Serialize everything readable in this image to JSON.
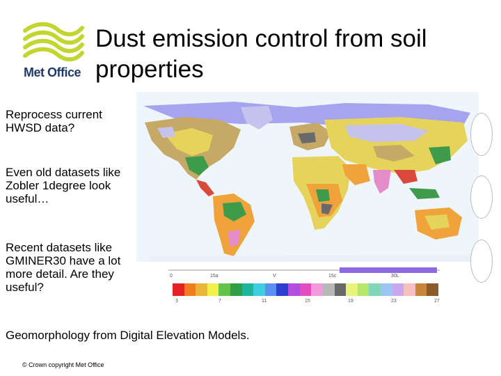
{
  "logo": {
    "brand": "Met Office"
  },
  "title": "Dust emission control from soil properties",
  "bullets": [
    "Reprocess current HWSD data?",
    "Even old datasets like Zobler 1degree look useful…",
    "Recent datasets like GMINER30 have a lot more detail. Are they useful?",
    "Geomorphology from Digital Elevation Models."
  ],
  "footer": "© Crown copyright   Met Office",
  "legend": {
    "axis_labels": [
      "0",
      "15a",
      "V",
      "15c",
      "30L"
    ],
    "tick_labels": [
      "3",
      "7",
      "11",
      "15",
      "19",
      "23",
      "27"
    ],
    "colors": [
      "#e52222",
      "#f07c1f",
      "#e8b63a",
      "#f4f04a",
      "#62c24a",
      "#2f9e45",
      "#1fb59a",
      "#3fcfe0",
      "#5b8ff0",
      "#2d3fd1",
      "#b14ee0",
      "#e04ec2",
      "#f19adc",
      "#b8b8b8",
      "#6a6a6a",
      "#e9f27a",
      "#b5e86a",
      "#7fd7b7",
      "#9ec4f5",
      "#c9a7ef",
      "#f5c0c0",
      "#c9853a",
      "#8a5a2a"
    ]
  },
  "map_colors": {
    "ocean": "#eef6fb",
    "ice": "#a6a3ef",
    "tundra": "#c5c3ee",
    "desert": "#e6d35b",
    "savanna": "#f0a23b",
    "forest": "#3e9b4a",
    "steppe": "#c6a867",
    "dark": "#6a6a6a",
    "pink": "#e38cc9",
    "red": "#d94a3c"
  }
}
